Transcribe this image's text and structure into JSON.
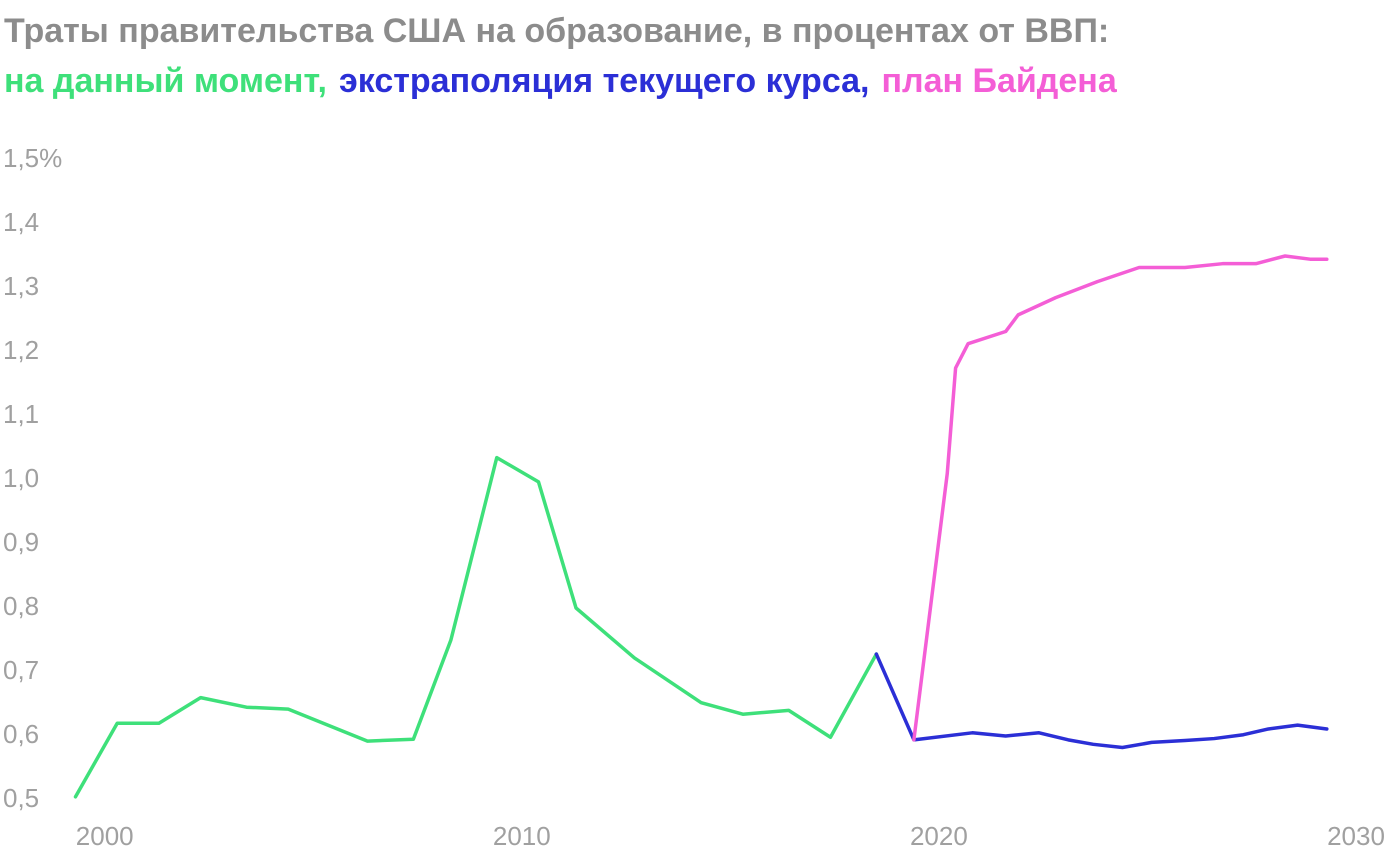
{
  "chart_data": {
    "type": "line",
    "title": "Траты правительства США на образование, в процентах от ВВП:",
    "series": [
      {
        "name": "на данный момент,",
        "color": "#3ee07a",
        "x": [
          1999.3,
          2000.3,
          2001.3,
          2002.3,
          2003.4,
          2004.4,
          2006.3,
          2007.4,
          2008.3,
          2009.4,
          2010.4,
          2011.3,
          2012.7,
          2014.3,
          2015.3,
          2016.4,
          2017.4,
          2018.5
        ],
        "values": [
          0.505,
          0.62,
          0.62,
          0.66,
          0.645,
          0.642,
          0.592,
          0.595,
          0.75,
          1.035,
          0.997,
          0.8,
          0.722,
          0.652,
          0.634,
          0.64,
          0.598,
          0.728
        ]
      },
      {
        "name": "экстраполяция текущего курса,",
        "color": "#2b2fd6",
        "x": [
          2018.5,
          2019.4,
          2020.8,
          2021.6,
          2022.4,
          2023.1,
          2023.7,
          2024.4,
          2025.1,
          2025.9,
          2026.6,
          2027.3,
          2027.9,
          2028.6,
          2029.3
        ],
        "values": [
          0.728,
          0.594,
          0.605,
          0.6,
          0.605,
          0.594,
          0.587,
          0.582,
          0.59,
          0.593,
          0.596,
          0.602,
          0.611,
          0.617,
          0.611
        ]
      },
      {
        "name": "план Байдена",
        "color": "#f45ed6",
        "x": [
          2019.4,
          2020.2,
          2020.4,
          2020.7,
          2021.6,
          2021.9,
          2022.8,
          2023.8,
          2024.8,
          2025.9,
          2026.8,
          2027.6,
          2028.3,
          2028.9,
          2029.3
        ],
        "values": [
          0.594,
          1.01,
          1.175,
          1.213,
          1.232,
          1.258,
          1.285,
          1.31,
          1.332,
          1.332,
          1.338,
          1.338,
          1.35,
          1.345,
          1.345
        ]
      }
    ],
    "xlim": [
      1999,
      2030
    ],
    "xticks": [
      2000,
      2010,
      2020,
      2030
    ],
    "ylim": [
      0.5,
      1.5
    ],
    "yticks": [
      {
        "value": 0.5,
        "label": "0,5"
      },
      {
        "value": 0.6,
        "label": "0,6"
      },
      {
        "value": 0.7,
        "label": "0,7"
      },
      {
        "value": 0.8,
        "label": "0,8"
      },
      {
        "value": 0.9,
        "label": "0,9"
      },
      {
        "value": 1.0,
        "label": "1,0"
      },
      {
        "value": 1.1,
        "label": "1,1"
      },
      {
        "value": 1.2,
        "label": "1,2"
      },
      {
        "value": 1.3,
        "label": "1,3"
      },
      {
        "value": 1.4,
        "label": "1,4"
      },
      {
        "value": 1.5,
        "label": "1,5%"
      }
    ],
    "grid": false
  }
}
